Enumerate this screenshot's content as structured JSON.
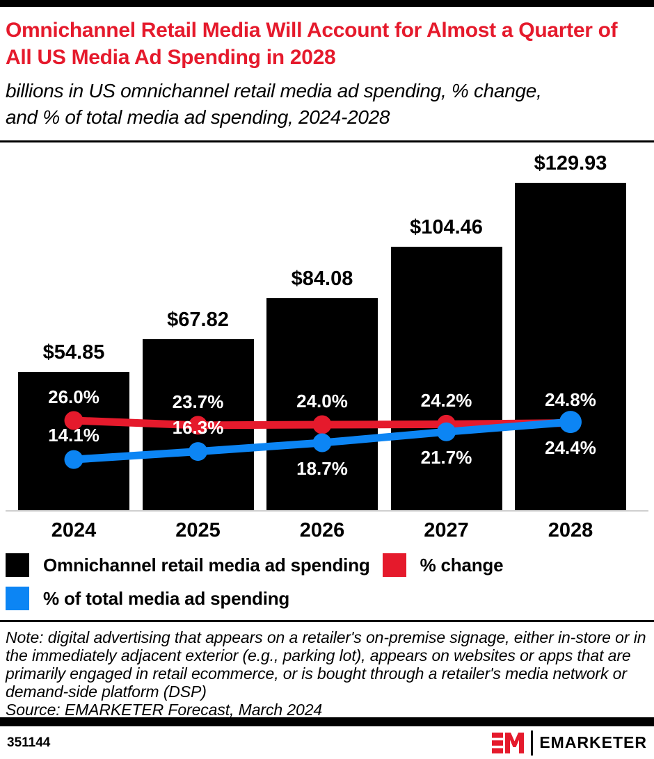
{
  "header": {
    "title": "Omnichannel Retail Media Will Account for Almost a Quarter of All US Media Ad Spending in 2028",
    "subtitle": "billions in US omnichannel retail media ad spending, % change, and % of total media ad spending, 2024-2028"
  },
  "colors": {
    "red": "#e51a2c",
    "blue": "#0c85f4",
    "black": "#000000",
    "axis_gray": "#cfcfcf"
  },
  "chart_data": {
    "type": "bar",
    "title": "Omnichannel Retail Media Will Account for Almost a Quarter of All US Media Ad Spending in 2028",
    "subtitle": "billions in US omnichannel retail media ad spending, % change, and % of total media ad spending, 2024-2028",
    "categories": [
      "2024",
      "2025",
      "2026",
      "2027",
      "2028"
    ],
    "series": [
      {
        "name": "Omnichannel retail media ad spending",
        "type": "bar",
        "unit": "billions of US dollars",
        "values": [
          54.85,
          67.82,
          84.08,
          104.46,
          129.93
        ],
        "labels": [
          "$54.85",
          "$67.82",
          "$84.08",
          "$104.46",
          "$129.93"
        ],
        "color": "#000000"
      },
      {
        "name": "% change",
        "type": "line",
        "unit": "percent",
        "values": [
          26.0,
          23.7,
          24.0,
          24.2,
          24.8
        ],
        "labels": [
          "26.0%",
          "23.7%",
          "24.0%",
          "24.2%",
          "24.8%"
        ],
        "color": "#e51a2c"
      },
      {
        "name": "% of total media ad spending",
        "type": "line",
        "unit": "percent",
        "values": [
          14.1,
          16.3,
          18.7,
          21.7,
          24.4
        ],
        "labels": [
          "14.1%",
          "16.3%",
          "18.7%",
          "21.7%",
          "24.4%"
        ],
        "color": "#0c85f4"
      }
    ],
    "xlabel": "",
    "ylabel": "",
    "grid": false,
    "legend_position": "bottom"
  },
  "footnote": {
    "note": "Note: digital advertising that appears on a retailer's on-premise signage, either in-store or in the immediately adjacent exterior (e.g., parking lot), appears on websites or apps that are primarily engaged in retail ecommerce, or is bought through a retailer's media network or demand-side platform (DSP)",
    "source": "Source: EMARKETER Forecast, March 2024"
  },
  "footer": {
    "chart_id": "351144",
    "brand": "EMARKETER"
  }
}
